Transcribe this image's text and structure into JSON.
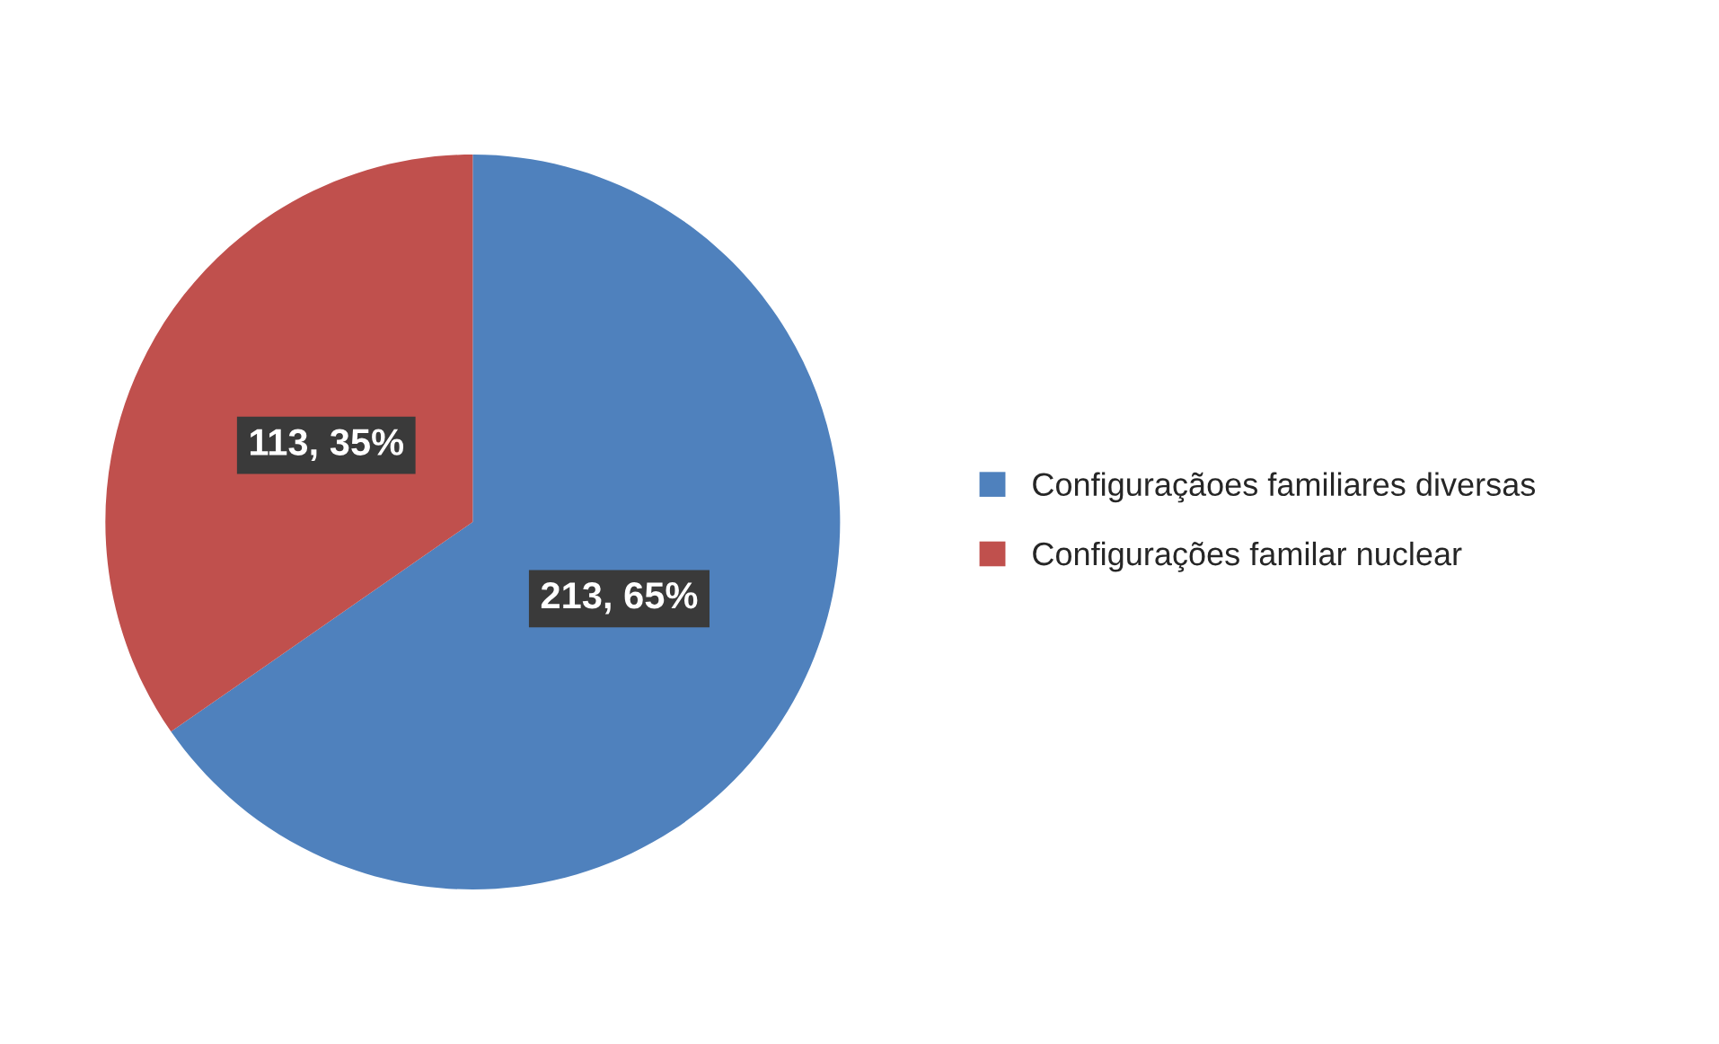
{
  "chart_data": {
    "type": "pie",
    "categories": [
      "Configuraçãoes familiares diversas",
      "Configurações familar nuclear"
    ],
    "values": [
      213,
      113
    ],
    "colors": [
      "#4f81bd",
      "#c0504d"
    ],
    "value_labels": [
      "213, 65%",
      "113, 35%"
    ],
    "legend": "right"
  }
}
